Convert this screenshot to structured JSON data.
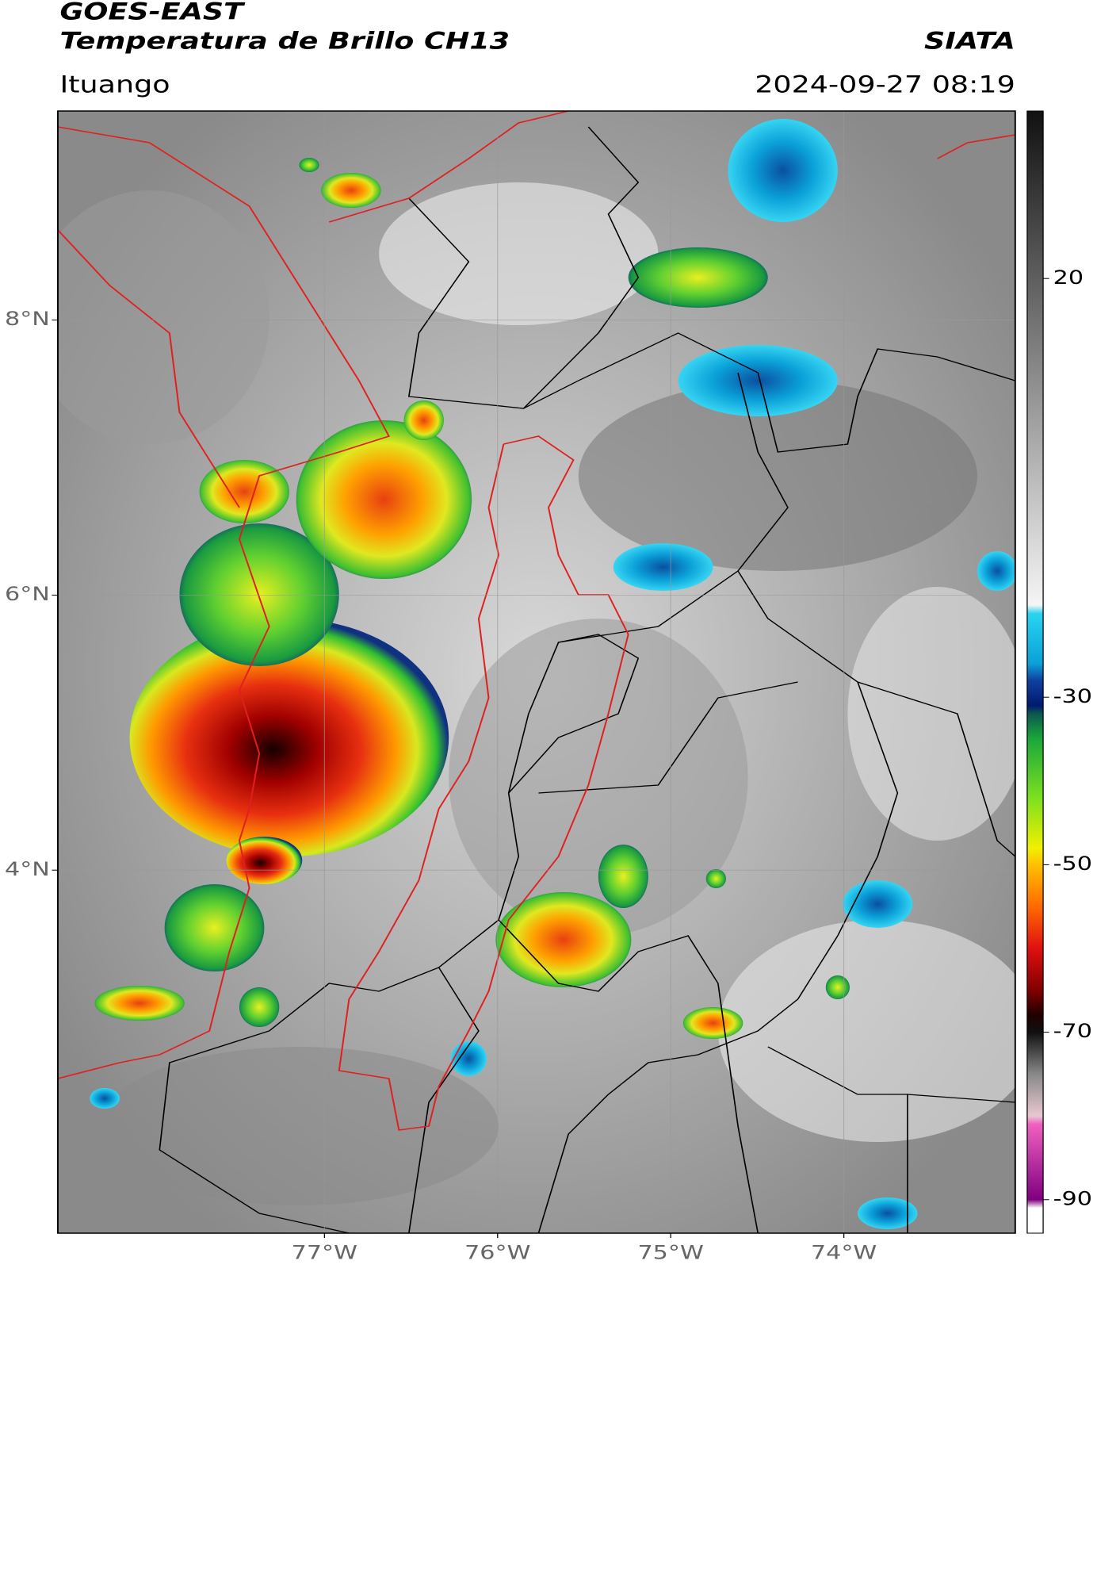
{
  "header": {
    "satellite": "GOES-EAST",
    "product": "Temperatura de Brillo CH13",
    "source": "SIATA",
    "location": "Ituango",
    "timestamp": "2024-09-27 08:19"
  },
  "map": {
    "xlim": [
      -78.54,
      -73.01
    ],
    "ylim": [
      1.36,
      9.52
    ],
    "xticks": [
      {
        "value": -77,
        "label": "77°W"
      },
      {
        "value": -76,
        "label": "76°W"
      },
      {
        "value": -75,
        "label": "75°W"
      },
      {
        "value": -74,
        "label": "74°W"
      }
    ],
    "yticks": [
      {
        "value": 8,
        "label": "8°N"
      },
      {
        "value": 6,
        "label": "6°N"
      },
      {
        "value": 4,
        "label": "4°N"
      }
    ],
    "grid": true
  },
  "colorbar": {
    "lim": [
      -94,
      40
    ],
    "ticks": [
      20,
      -30,
      -50,
      -70,
      -90
    ],
    "stops": [
      {
        "value": 40,
        "color": "#111111"
      },
      {
        "value": -19,
        "color": "#f5f5f5"
      },
      {
        "value": -20,
        "color": "#2ad4f0"
      },
      {
        "value": -26,
        "color": "#0aa0d8"
      },
      {
        "value": -28,
        "color": "#1040a0"
      },
      {
        "value": -31,
        "color": "#001a70"
      },
      {
        "value": -32,
        "color": "#0a5a50"
      },
      {
        "value": -35,
        "color": "#1aa83a"
      },
      {
        "value": -42,
        "color": "#7ce020"
      },
      {
        "value": -48,
        "color": "#f0f000"
      },
      {
        "value": -50,
        "color": "#ffc000"
      },
      {
        "value": -55,
        "color": "#ff6a00"
      },
      {
        "value": -60,
        "color": "#e01010"
      },
      {
        "value": -65,
        "color": "#800000"
      },
      {
        "value": -68,
        "color": "#200000"
      },
      {
        "value": -70,
        "color": "#101010"
      },
      {
        "value": -75,
        "color": "#888888"
      },
      {
        "value": -80,
        "color": "#e8c8d0"
      },
      {
        "value": -81,
        "color": "#f060c0"
      },
      {
        "value": -90,
        "color": "#800080"
      },
      {
        "value": -91,
        "color": "#ffffff"
      },
      {
        "value": -94,
        "color": "#ffffff"
      }
    ]
  }
}
